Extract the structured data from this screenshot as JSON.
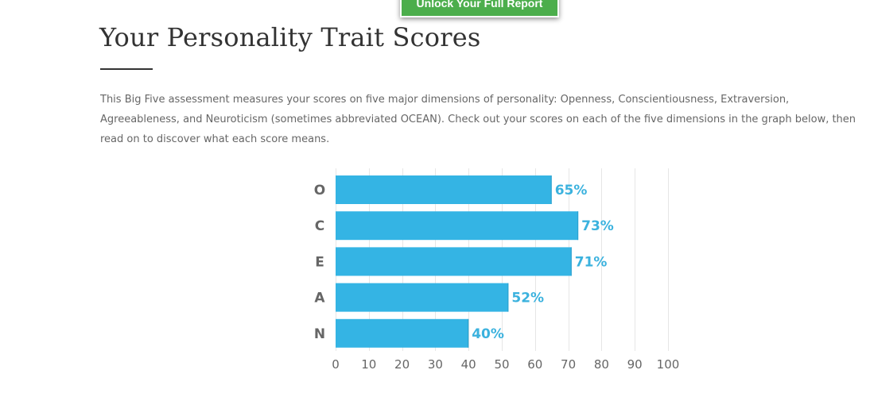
{
  "cta": {
    "label": "Unlock Your Full Report"
  },
  "page": {
    "title": "Your Personality Trait Scores",
    "intro": "This Big Five assessment measures your scores on five major dimensions of personality: Openness, Conscientiousness, Extraversion, Agreeableness, and Neuroticism (sometimes abbreviated OCEAN). Check out your scores on each of the five dimensions in the graph below, then read on to discover what each score means."
  },
  "colors": {
    "bar": "#34b4e4",
    "value_label": "#3bb2de",
    "button": "#4cae4c"
  },
  "chart_data": {
    "type": "bar",
    "orientation": "horizontal",
    "categories": [
      "O",
      "C",
      "E",
      "A",
      "N"
    ],
    "values": [
      65,
      73,
      71,
      52,
      40
    ],
    "value_labels": [
      "65%",
      "73%",
      "71%",
      "52%",
      "40%"
    ],
    "xlim": [
      0,
      100
    ],
    "xticks": [
      0,
      10,
      20,
      30,
      40,
      50,
      60,
      70,
      80,
      90,
      100
    ],
    "grid": true,
    "title": "",
    "xlabel": "",
    "ylabel": ""
  }
}
